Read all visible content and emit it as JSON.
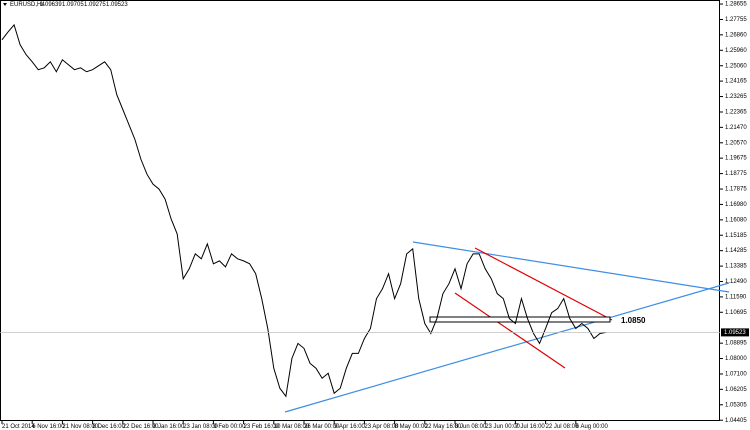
{
  "chart_data": {
    "type": "line",
    "title": "EURUSD,H4",
    "ohlc": [
      1.09639,
      1.09705,
      1.09275,
      1.09523
    ],
    "annotation": "1.0850",
    "color": "#000000",
    "categories": [
      "21 Oct 2014",
      null,
      null,
      null,
      null,
      "6 Nov 16:00",
      null,
      null,
      null,
      null,
      "21 Nov 08:00",
      null,
      null,
      null,
      null,
      "8 Dec 16:00",
      null,
      null,
      null,
      null,
      "22 Dec 16:00",
      null,
      null,
      null,
      null,
      "8 Jan 16:00",
      null,
      null,
      null,
      null,
      "23 Jan 08:00",
      null,
      null,
      null,
      null,
      "9 Feb 00:00",
      null,
      null,
      null,
      null,
      "23 Feb 16:00",
      null,
      null,
      null,
      null,
      "10 Mar 08:00",
      null,
      null,
      null,
      null,
      "26 Mar 00:00",
      null,
      null,
      null,
      null,
      "9 Apr 16:00",
      null,
      null,
      null,
      null,
      "23 Apr 08:00",
      null,
      null,
      null,
      null,
      "8 May 00:00",
      null,
      null,
      null,
      null,
      "22 May 16:00",
      null,
      null,
      null,
      null,
      "8 Jun 08:00",
      null,
      null,
      null,
      null,
      "23 Jun 00:00",
      null,
      null,
      null,
      null,
      "7 Jul 16:00",
      null,
      null,
      null,
      null,
      "22 Jul 08:00",
      null,
      null,
      null,
      null,
      "6 Aug 00:00",
      null,
      null,
      null,
      null,
      null
    ],
    "values": [
      1.2657,
      1.2703,
      1.2744,
      1.2628,
      1.257,
      1.2529,
      1.2483,
      1.2494,
      1.2529,
      1.2471,
      1.2541,
      1.2512,
      1.2483,
      1.2494,
      1.2471,
      1.2483,
      1.2506,
      1.2529,
      1.2483,
      1.2338,
      1.2251,
      1.2164,
      1.2077,
      1.1961,
      1.1874,
      1.1816,
      1.1787,
      1.1729,
      1.1613,
      1.1526,
      1.1265,
      1.1323,
      1.141,
      1.1381,
      1.1468,
      1.1352,
      1.1369,
      1.1334,
      1.141,
      1.1381,
      1.1369,
      1.1352,
      1.1294,
      1.1149,
      1.0975,
      1.0743,
      1.0627,
      1.058,
      1.0801,
      1.0888,
      1.0859,
      1.0772,
      1.0743,
      1.0685,
      1.0714,
      1.0598,
      1.0627,
      1.0743,
      1.083,
      1.083,
      1.0917,
      1.0975,
      1.1149,
      1.1207,
      1.1294,
      1.1149,
      1.1236,
      1.141,
      1.1439,
      1.1149,
      1.1004,
      1.0946,
      1.1033,
      1.1178,
      1.1236,
      1.1323,
      1.1207,
      1.1352,
      1.141,
      1.141,
      1.1323,
      1.1265,
      1.1178,
      1.1149,
      1.1033,
      1.1004,
      1.1149,
      1.1033,
      1.0946,
      1.0888,
      1.0975,
      1.1067,
      1.1091,
      1.1149,
      1.1033,
      1.0975,
      1.1004,
      1.0975,
      1.0917,
      1.0946,
      1.0952
    ],
    "ylim": [
      1.0436,
      1.2889
    ],
    "yticks": [
      1.28655,
      1.27755,
      {
        "value": 1.2686,
        "label": "1.26860"
      },
      {
        "value": 1.2596,
        "label": "1.25960"
      },
      {
        "value": 1.2506,
        "label": "1.25060"
      },
      1.24165,
      1.23265,
      1.22365,
      {
        "value": 1.2147,
        "label": "1.21470"
      },
      {
        "value": 1.2057,
        "label": "1.20570"
      },
      1.19675,
      1.18775,
      1.17875,
      {
        "value": 1.1698,
        "label": "1.16980"
      },
      {
        "value": 1.1608,
        "label": "1.16080"
      },
      1.15185,
      1.14285,
      1.13385,
      {
        "value": 1.1249,
        "label": "1.12490"
      },
      {
        "value": 1.1159,
        "label": "1.11590"
      },
      1.10695,
      1.08895,
      {
        "value": 1.08,
        "label": "1.08000"
      },
      {
        "value": 1.071,
        "label": "1.07100"
      },
      1.06205,
      1.05305,
      1.04405
    ]
  }
}
